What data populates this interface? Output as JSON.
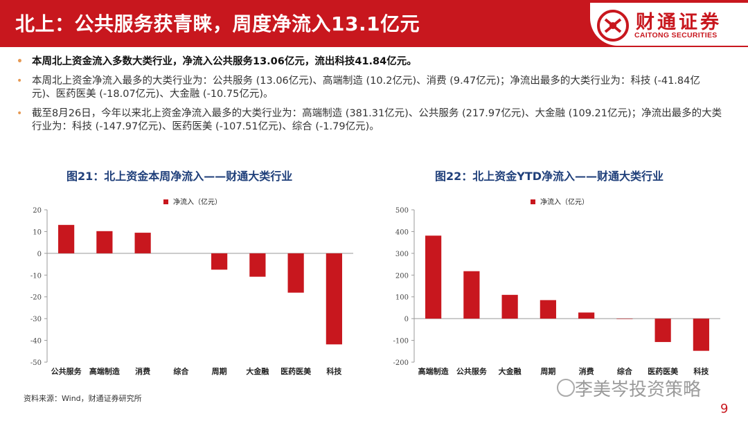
{
  "header": {
    "title": "北上：公共服务获青睐，周度净流入13.1亿元",
    "logo_cn": "财通证券",
    "logo_en": "CAITONG SECURITIES",
    "accent_color": "#c8171e"
  },
  "bullets": [
    "本周北上资金流入多数大类行业，净流入公共服务13.06亿元，流出科技41.84亿元。",
    "本周北上资金净流入最多的大类行业为：公共服务 (13.06亿元)、高端制造 (10.2亿元)、消费 (9.47亿元)；净流出最多的大类行业为：科技 (-41.84亿元)、医药医美 (-18.07亿元)、大金融 (-10.75亿元)。",
    "截至8月26日，今年以来北上资金净流入最多的大类行业为：高端制造 (381.31亿元)、公共服务 (217.97亿元)、大金融 (109.21亿元)；净流出最多的大类行业为：科技 (-147.97亿元)、医药医美 (-107.51亿元)、综合 (-1.79亿元)。"
  ],
  "charts_meta": {
    "left_title": "图21：北上资金本周净流入——财通大类行业",
    "right_title": "图22：北上资金YTD净流入——财通大类行业"
  },
  "chart_data": [
    {
      "type": "bar",
      "title": "图21：北上资金本周净流入——财通大类行业",
      "categories": [
        "公共服务",
        "高端制造",
        "消费",
        "综合",
        "周期",
        "大金融",
        "医药医美",
        "科技"
      ],
      "series": [
        {
          "name": "净流入（亿元）",
          "values": [
            13.06,
            10.2,
            9.47,
            0,
            -7.5,
            -10.75,
            -18.07,
            -41.84
          ],
          "color": "#c8171e"
        }
      ],
      "yticks": [
        "20",
        "10",
        "0",
        "-10",
        "-20",
        "-30",
        "-40",
        "-50"
      ],
      "ylim": [
        -50,
        20
      ],
      "legend": "top-left",
      "grid": false
    },
    {
      "type": "bar",
      "title": "图22：北上资金YTD净流入——财通大类行业",
      "categories": [
        "高端制造",
        "公共服务",
        "大金融",
        "周期",
        "消费",
        "综合",
        "医药医美",
        "科技"
      ],
      "series": [
        {
          "name": "净流入（亿元）",
          "values": [
            381.31,
            217.97,
            109.21,
            85,
            28,
            -1.79,
            -107.51,
            -147.97
          ],
          "color": "#c8171e"
        }
      ],
      "yticks": [
        "500",
        "400",
        "300",
        "200",
        "100",
        "0",
        "-100",
        "-200"
      ],
      "ylim": [
        -200,
        500
      ],
      "legend": "top-left",
      "grid": false
    }
  ],
  "footer": {
    "source": "资料来源：Wind，财通证券研究所",
    "watermark": "李美岑投资策略",
    "page_number": "9"
  }
}
